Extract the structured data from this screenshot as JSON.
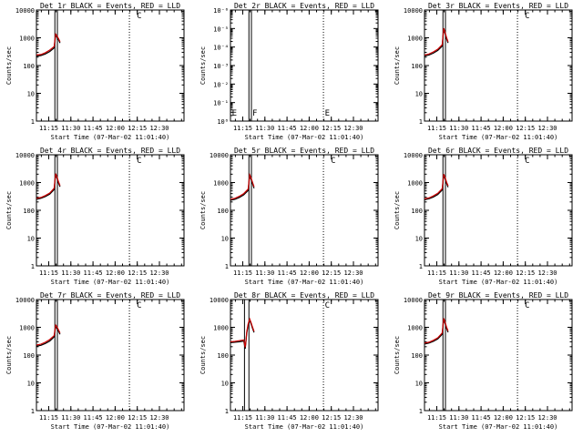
{
  "xlabel": "Start Time (07-Mar-02 11:01:40)",
  "ylabel": "Counts/sec",
  "x_ticks": [
    "11:15",
    "11:30",
    "11:45",
    "12:00",
    "12:15",
    "12:30"
  ],
  "colors": {
    "events": "#000000",
    "lld": "#cc0000",
    "axes": "#000000",
    "background": "#ffffff"
  },
  "chart_data": [
    {
      "type": "line",
      "title": "Det 1r  BLACK = Events, RED = LLD",
      "scale": "log",
      "ylim": [
        1,
        10000
      ],
      "y_ticks": [
        "10000",
        "1000",
        "100",
        "10",
        "1"
      ],
      "x_start_min": 0,
      "x_end_min": 100,
      "line_range_min": [
        0,
        16
      ],
      "series": [
        {
          "role": "events",
          "x": [
            0,
            3,
            6,
            9,
            12,
            13,
            14,
            15,
            16
          ],
          "y": [
            220,
            230,
            260,
            320,
            430,
            1200,
            1050,
            850,
            650
          ]
        },
        {
          "role": "lld",
          "x": [
            0,
            3,
            6,
            9,
            12,
            13,
            14,
            15,
            16
          ],
          "y": [
            240,
            250,
            290,
            360,
            480,
            1350,
            1150,
            930,
            720
          ]
        }
      ],
      "solid_vlines": [
        12.5,
        14.2
      ],
      "dotted_vlines": [
        63
      ],
      "markers": [
        {
          "x": 68,
          "text": "C"
        }
      ]
    },
    {
      "type": "line",
      "title": "Det 2r  BLACK = Events, RED = LLD",
      "scale": "log",
      "ylim": [
        1e-06,
        1
      ],
      "y_ticks": [
        "10⁻⁶",
        "10⁻⁵",
        "10⁻⁴",
        "10⁻³",
        "10⁻²",
        "10⁻¹",
        "10⁰"
      ],
      "x_start_min": 0,
      "x_end_min": 100,
      "line_range_min": [
        0,
        0
      ],
      "series": [],
      "solid_vlines": [
        12.5,
        14.2
      ],
      "dotted_vlines": [
        63
      ],
      "markers": [
        {
          "x": 1,
          "text": "E"
        },
        {
          "x": 14.8,
          "text": "F"
        },
        {
          "x": 64,
          "text": "E"
        }
      ]
    },
    {
      "type": "line",
      "title": "Det 3r  BLACK = Events, RED = LLD",
      "scale": "log",
      "ylim": [
        1,
        10000
      ],
      "y_ticks": [
        "10000",
        "1000",
        "100",
        "10",
        "1"
      ],
      "x_start_min": 0,
      "x_end_min": 100,
      "line_range_min": [
        0,
        16
      ],
      "series": [
        {
          "role": "events",
          "x": [
            0,
            3,
            6,
            9,
            12,
            13,
            14,
            15,
            16
          ],
          "y": [
            220,
            240,
            280,
            350,
            500,
            2000,
            1400,
            900,
            650
          ]
        },
        {
          "role": "lld",
          "x": [
            0,
            3,
            6,
            9,
            12,
            13,
            14,
            15,
            16
          ],
          "y": [
            240,
            260,
            310,
            390,
            560,
            2200,
            1550,
            1000,
            720
          ]
        }
      ],
      "solid_vlines": [
        12.5,
        14.2
      ],
      "dotted_vlines": [
        63
      ],
      "markers": [
        {
          "x": 68,
          "text": "C"
        }
      ]
    },
    {
      "type": "line",
      "title": "Det 4r  BLACK = Events, RED = LLD",
      "scale": "log",
      "ylim": [
        1,
        10000
      ],
      "y_ticks": [
        "10000",
        "1000",
        "100",
        "10",
        "1"
      ],
      "x_start_min": 0,
      "x_end_min": 100,
      "line_range_min": [
        0,
        16
      ],
      "series": [
        {
          "role": "events",
          "x": [
            0,
            3,
            6,
            9,
            12,
            13,
            14,
            15,
            16
          ],
          "y": [
            250,
            270,
            310,
            380,
            560,
            1900,
            1400,
            950,
            700
          ]
        },
        {
          "role": "lld",
          "x": [
            0,
            3,
            6,
            9,
            12,
            13,
            14,
            15,
            16
          ],
          "y": [
            270,
            290,
            340,
            420,
            620,
            2100,
            1550,
            1050,
            780
          ]
        }
      ],
      "solid_vlines": [
        12.5,
        14.2
      ],
      "dotted_vlines": [
        63
      ],
      "markers": [
        {
          "x": 68,
          "text": "C"
        }
      ]
    },
    {
      "type": "line",
      "title": "Det 5r  BLACK = Events, RED = LLD",
      "scale": "log",
      "ylim": [
        1,
        10000
      ],
      "y_ticks": [
        "10000",
        "1000",
        "100",
        "10",
        "1"
      ],
      "x_start_min": 0,
      "x_end_min": 100,
      "line_range_min": [
        0,
        16
      ],
      "series": [
        {
          "role": "events",
          "x": [
            0,
            3,
            6,
            9,
            12,
            13,
            14,
            15,
            16
          ],
          "y": [
            230,
            250,
            290,
            360,
            520,
            1700,
            1300,
            900,
            620
          ]
        },
        {
          "role": "lld",
          "x": [
            0,
            3,
            6,
            9,
            12,
            13,
            14,
            15,
            16
          ],
          "y": [
            250,
            270,
            320,
            400,
            580,
            1900,
            1450,
            1000,
            700
          ]
        }
      ],
      "solid_vlines": [
        12.5,
        14.2
      ],
      "dotted_vlines": [
        63
      ],
      "markers": [
        {
          "x": 68,
          "text": "C"
        }
      ]
    },
    {
      "type": "line",
      "title": "Det 6r  BLACK = Events, RED = LLD",
      "scale": "log",
      "ylim": [
        1,
        10000
      ],
      "y_ticks": [
        "10000",
        "1000",
        "100",
        "10",
        "1"
      ],
      "x_start_min": 0,
      "x_end_min": 100,
      "line_range_min": [
        0,
        16
      ],
      "series": [
        {
          "role": "events",
          "x": [
            0,
            3,
            6,
            9,
            12,
            13,
            14,
            15,
            16
          ],
          "y": [
            240,
            260,
            300,
            370,
            540,
            1800,
            1350,
            920,
            680
          ]
        },
        {
          "role": "lld",
          "x": [
            0,
            3,
            6,
            9,
            12,
            13,
            14,
            15,
            16
          ],
          "y": [
            260,
            280,
            330,
            410,
            600,
            2000,
            1500,
            1020,
            760
          ]
        }
      ],
      "solid_vlines": [
        12.5,
        14.2
      ],
      "dotted_vlines": [
        63
      ],
      "markers": [
        {
          "x": 68,
          "text": "C"
        }
      ]
    },
    {
      "type": "line",
      "title": "Det 7r  BLACK = Events, RED = LLD",
      "scale": "log",
      "ylim": [
        1,
        10000
      ],
      "y_ticks": [
        "10000",
        "1000",
        "100",
        "10",
        "1"
      ],
      "x_start_min": 0,
      "x_end_min": 100,
      "line_range_min": [
        0,
        16
      ],
      "series": [
        {
          "role": "events",
          "x": [
            0,
            3,
            6,
            9,
            12,
            13,
            14,
            15,
            16
          ],
          "y": [
            210,
            225,
            260,
            320,
            450,
            1050,
            900,
            720,
            560
          ]
        },
        {
          "role": "lld",
          "x": [
            0,
            3,
            6,
            9,
            12,
            13,
            14,
            15,
            16
          ],
          "y": [
            230,
            245,
            290,
            360,
            500,
            1200,
            1020,
            800,
            620
          ]
        }
      ],
      "solid_vlines": [
        12.5,
        14.2
      ],
      "dotted_vlines": [
        63
      ],
      "markers": [
        {
          "x": 68,
          "text": "C"
        }
      ]
    },
    {
      "type": "line",
      "title": "Det 8r  BLACK = Events, RED = LLD",
      "scale": "log",
      "ylim": [
        1,
        10000
      ],
      "y_ticks": [
        "10000",
        "1000",
        "100",
        "10",
        "1"
      ],
      "x_start_min": 0,
      "x_end_min": 100,
      "line_range_min": [
        0,
        16
      ],
      "series": [
        {
          "role": "events",
          "x": [
            0,
            3,
            6,
            9,
            10,
            10.5,
            11,
            12,
            13,
            14,
            15,
            16
          ],
          "y": [
            280,
            290,
            300,
            320,
            170,
            300,
            600,
            1200,
            1800,
            1300,
            900,
            650
          ]
        },
        {
          "role": "lld",
          "x": [
            0,
            3,
            6,
            9,
            10,
            10.5,
            11,
            12,
            13,
            14,
            15,
            16
          ],
          "y": [
            300,
            310,
            330,
            350,
            190,
            330,
            660,
            1320,
            2000,
            1450,
            1000,
            720
          ]
        }
      ],
      "solid_vlines": [
        9.5,
        12.5
      ],
      "dotted_vlines": [
        63
      ],
      "markers": [
        {
          "x": 64,
          "text": "C"
        }
      ]
    },
    {
      "type": "line",
      "title": "Det 9r  BLACK = Events, RED = LLD",
      "scale": "log",
      "ylim": [
        1,
        10000
      ],
      "y_ticks": [
        "10000",
        "1000",
        "100",
        "10",
        "1"
      ],
      "x_start_min": 0,
      "x_end_min": 100,
      "line_range_min": [
        0,
        16
      ],
      "series": [
        {
          "role": "events",
          "x": [
            0,
            3,
            6,
            9,
            12,
            13,
            14,
            15,
            16
          ],
          "y": [
            250,
            270,
            310,
            380,
            560,
            1900,
            1350,
            900,
            660
          ]
        },
        {
          "role": "lld",
          "x": [
            0,
            3,
            6,
            9,
            12,
            13,
            14,
            15,
            16
          ],
          "y": [
            270,
            290,
            340,
            420,
            620,
            2100,
            1500,
            1000,
            740
          ]
        }
      ],
      "solid_vlines": [
        12.5,
        14.2
      ],
      "dotted_vlines": [
        63
      ],
      "markers": [
        {
          "x": 68,
          "text": "C"
        }
      ]
    }
  ]
}
